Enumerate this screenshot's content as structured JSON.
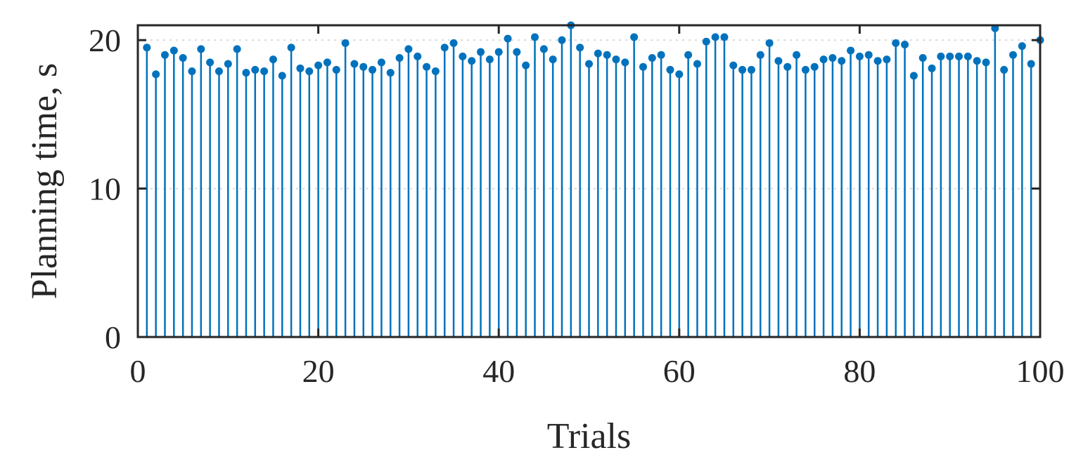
{
  "chart_data": {
    "type": "stem",
    "xlabel": "Trials",
    "ylabel": "Planning time, s",
    "xlim": [
      0,
      100
    ],
    "ylim": [
      0,
      21
    ],
    "xticks": [
      0,
      20,
      40,
      60,
      80,
      100
    ],
    "yticks": [
      0,
      10,
      20
    ],
    "grid": "horizontal dotted",
    "color": "#0072bd",
    "x": [
      1,
      2,
      3,
      4,
      5,
      6,
      7,
      8,
      9,
      10,
      11,
      12,
      13,
      14,
      15,
      16,
      17,
      18,
      19,
      20,
      21,
      22,
      23,
      24,
      25,
      26,
      27,
      28,
      29,
      30,
      31,
      32,
      33,
      34,
      35,
      36,
      37,
      38,
      39,
      40,
      41,
      42,
      43,
      44,
      45,
      46,
      47,
      48,
      49,
      50,
      51,
      52,
      53,
      54,
      55,
      56,
      57,
      58,
      59,
      60,
      61,
      62,
      63,
      64,
      65,
      66,
      67,
      68,
      69,
      70,
      71,
      72,
      73,
      74,
      75,
      76,
      77,
      78,
      79,
      80,
      81,
      82,
      83,
      84,
      85,
      86,
      87,
      88,
      89,
      90,
      91,
      92,
      93,
      94,
      95,
      96,
      97,
      98,
      99,
      100
    ],
    "values": [
      19.5,
      17.7,
      19.0,
      19.3,
      18.8,
      17.9,
      19.4,
      18.5,
      17.9,
      18.4,
      19.4,
      17.8,
      18.0,
      17.9,
      18.7,
      17.6,
      19.5,
      18.1,
      17.9,
      18.3,
      18.5,
      18.0,
      19.8,
      18.4,
      18.2,
      18.0,
      18.5,
      17.8,
      18.8,
      19.4,
      18.9,
      18.2,
      17.9,
      19.5,
      19.8,
      18.9,
      18.6,
      19.2,
      18.7,
      19.2,
      20.1,
      19.2,
      18.3,
      20.2,
      19.4,
      18.7,
      20.0,
      21.0,
      19.5,
      18.4,
      19.1,
      19.0,
      18.7,
      18.5,
      20.2,
      18.2,
      18.8,
      19.0,
      18.0,
      17.7,
      19.0,
      18.4,
      19.9,
      20.2,
      20.2,
      18.3,
      18.0,
      18.0,
      19.0,
      19.8,
      18.6,
      18.2,
      19.0,
      18.0,
      18.2,
      18.7,
      18.8,
      18.6,
      19.3,
      18.9,
      19.0,
      18.6,
      18.7,
      19.8,
      19.7,
      17.6,
      18.8,
      18.1,
      18.9,
      18.9,
      18.9,
      18.9,
      18.6,
      18.5,
      20.8,
      18.0,
      19.0,
      19.6,
      18.4,
      20.0
    ]
  }
}
